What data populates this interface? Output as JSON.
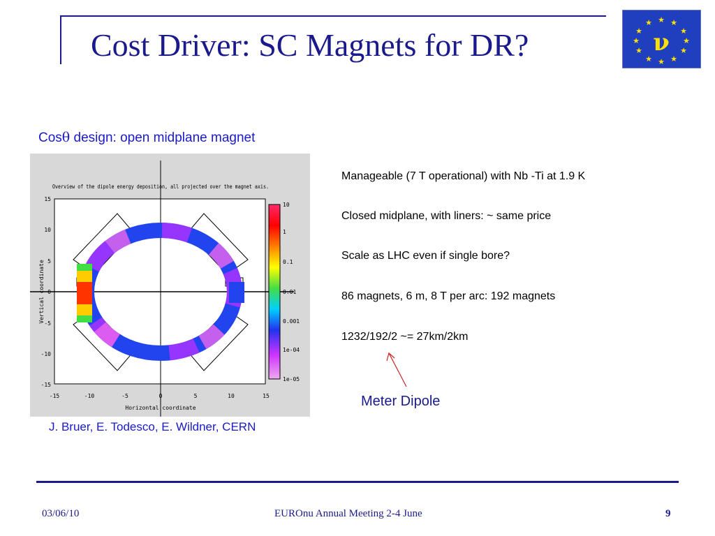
{
  "slide": {
    "title": "Cost Driver: SC Magnets for DR?",
    "logo_text": "ν",
    "subtitle_prefix": "Cos",
    "subtitle_theta": "θ",
    "subtitle_rest": " design: open midplane magnet",
    "credit": "J. Bruer, E. Todesco, E. Wildner, CERN",
    "bullets": [
      "Manageable (7 T operational) with Nb -Ti at 1.9 K",
      "Closed midplane, with liners:   ~ same price",
      "Scale as LHC even if single bore?",
      "86 magnets, 6 m, 8 T per arc: 192 magnets",
      "1232/192/2 ~= 27km/2km"
    ],
    "annotation": "Meter Dipole",
    "footer": {
      "date": "03/06/10",
      "event": "EUROnu Annual Meeting 2-4  June",
      "page": "9"
    }
  },
  "plot": {
    "title": "Overview of the dipole energy deposition, all projected over the magnet axis.",
    "xlabel": "Horizontal coordinate",
    "ylabel": "Vertical coordinate",
    "x_ticks": [
      "-15",
      "-10",
      "-5",
      "0",
      "5",
      "10",
      "15"
    ],
    "y_ticks": [
      "15",
      "10",
      "5",
      "0",
      "-5",
      "-10",
      "-15"
    ],
    "colorbar_labels": [
      "10",
      "1",
      "0.1",
      "0.01",
      "0.001",
      "1e-04",
      "1e-05"
    ]
  },
  "colors": {
    "title_blue": "#1a1a8c",
    "link_blue": "#1a1acc",
    "logo_bg": "#1f3fbf",
    "logo_star": "#ffe000",
    "arrow_red": "#cc2222"
  }
}
